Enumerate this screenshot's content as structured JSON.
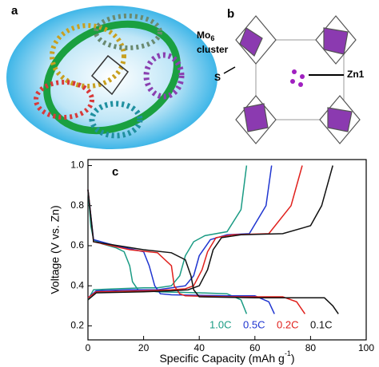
{
  "panels": {
    "a": "a",
    "b": "b",
    "mo": "Mo",
    "mo_sub": "6",
    "cluster": "cluster",
    "s": "S",
    "zn": "Zn1"
  },
  "chart_data": {
    "type": "line",
    "panel_label": "c",
    "x_label": "Specific Capacity (mAh g",
    "x_label_sup": "-1",
    "x_label_end": ")",
    "y_label": "Voltage (V vs. Zn)",
    "xlim": [
      0,
      100
    ],
    "ylim": [
      0.13,
      1.03
    ],
    "xticks": [
      0,
      20,
      40,
      60,
      80,
      100
    ],
    "yticks": [
      0.2,
      0.4,
      0.6,
      0.8,
      {
        "value": 1,
        "label": "1.0"
      }
    ],
    "series": [
      {
        "name": "1.0C",
        "color": "#1a9b84",
        "discharge": {
          "x": [
            0,
            1,
            2,
            5,
            10,
            13,
            15,
            16,
            18,
            25,
            40,
            50,
            55,
            57
          ],
          "values": [
            0.88,
            0.7,
            0.63,
            0.61,
            0.59,
            0.57,
            0.5,
            0.42,
            0.38,
            0.37,
            0.365,
            0.36,
            0.33,
            0.26
          ]
        },
        "charge": {
          "x": [
            0,
            2,
            10,
            20,
            25,
            30,
            33,
            35,
            38,
            42,
            50,
            55,
            57
          ],
          "values": [
            0.33,
            0.38,
            0.385,
            0.39,
            0.39,
            0.4,
            0.45,
            0.55,
            0.62,
            0.65,
            0.67,
            0.78,
            1.0
          ]
        }
      },
      {
        "name": "0.5C",
        "color": "#1f35d0",
        "discharge": {
          "x": [
            0,
            2,
            10,
            20,
            22,
            24,
            26,
            30,
            50,
            60,
            65,
            67
          ],
          "values": [
            0.88,
            0.63,
            0.6,
            0.57,
            0.5,
            0.4,
            0.36,
            0.355,
            0.35,
            0.35,
            0.32,
            0.26
          ]
        },
        "charge": {
          "x": [
            0,
            3,
            15,
            25,
            30,
            35,
            38,
            40,
            44,
            50,
            58,
            64,
            66
          ],
          "values": [
            0.34,
            0.375,
            0.38,
            0.38,
            0.39,
            0.4,
            0.45,
            0.55,
            0.63,
            0.655,
            0.66,
            0.8,
            1.0
          ]
        }
      },
      {
        "name": "0.2C",
        "color": "#e0201c",
        "discharge": {
          "x": [
            0,
            2,
            15,
            25,
            30,
            31,
            33,
            35,
            50,
            70,
            75,
            78
          ],
          "values": [
            0.88,
            0.62,
            0.58,
            0.565,
            0.5,
            0.4,
            0.36,
            0.35,
            0.345,
            0.345,
            0.32,
            0.26
          ]
        },
        "charge": {
          "x": [
            0,
            3,
            20,
            30,
            35,
            38,
            41,
            43,
            46,
            52,
            65,
            73,
            77
          ],
          "values": [
            0.34,
            0.37,
            0.375,
            0.38,
            0.385,
            0.4,
            0.48,
            0.57,
            0.64,
            0.655,
            0.66,
            0.8,
            1.0
          ]
        }
      },
      {
        "name": "0.1C",
        "color": "#111111",
        "discharge": {
          "x": [
            0,
            2,
            20,
            30,
            35,
            37,
            38,
            40,
            60,
            85,
            88,
            90
          ],
          "values": [
            0.88,
            0.62,
            0.58,
            0.565,
            0.53,
            0.45,
            0.38,
            0.345,
            0.34,
            0.34,
            0.3,
            0.26
          ]
        },
        "charge": {
          "x": [
            0,
            3,
            20,
            30,
            36,
            40,
            43,
            45,
            48,
            55,
            70,
            80,
            84,
            88
          ],
          "values": [
            0.33,
            0.365,
            0.37,
            0.375,
            0.38,
            0.4,
            0.48,
            0.58,
            0.64,
            0.655,
            0.66,
            0.7,
            0.8,
            1.0
          ]
        }
      }
    ]
  }
}
